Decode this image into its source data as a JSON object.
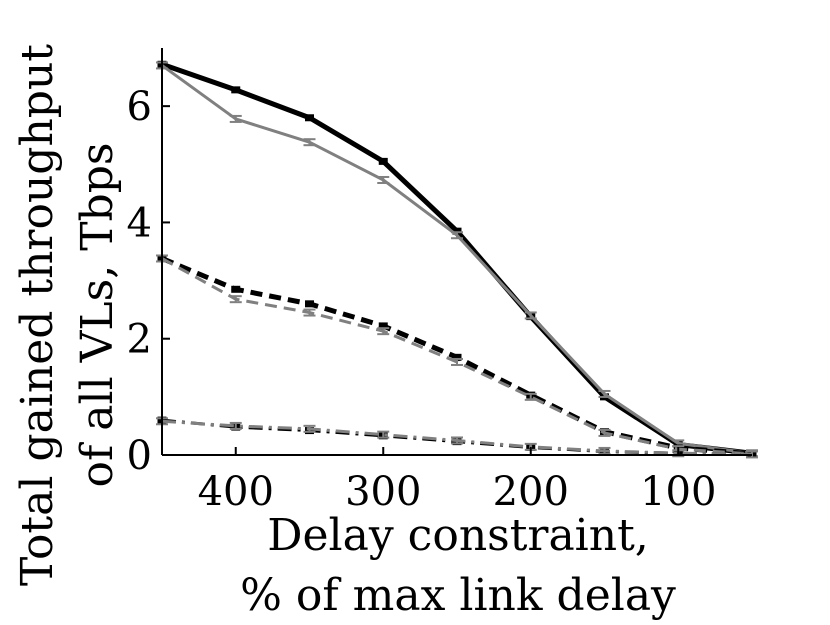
{
  "chart_data": {
    "type": "line",
    "title": "",
    "xlabel": [
      "Delay constraint,",
      "% of max link delay"
    ],
    "ylabel": [
      "Total gained throughput",
      "of all VLs, Tbps"
    ],
    "xlim": [
      450,
      50
    ],
    "ylim": [
      0,
      7
    ],
    "x_reversed": true,
    "grid": false,
    "legend": "none",
    "xticks": [
      400,
      300,
      200,
      100
    ],
    "yticks": [
      0,
      2,
      4,
      6
    ],
    "x": [
      450,
      400,
      350,
      300,
      250,
      200,
      150,
      100,
      50
    ],
    "series": [
      {
        "color": "#000000",
        "dash": "solid",
        "width": 5,
        "marker": "square",
        "values": [
          6.72,
          6.28,
          5.8,
          5.05,
          3.85,
          2.38,
          1.0,
          0.18,
          0.03
        ]
      },
      {
        "color": "#808080",
        "dash": "solid",
        "width": 3,
        "marker": "errorbar",
        "values": [
          6.7,
          5.78,
          5.38,
          4.73,
          3.78,
          2.4,
          1.05,
          0.2,
          0.03
        ]
      },
      {
        "color": "#000000",
        "dash": "dashed",
        "width": 5,
        "marker": "square",
        "values": [
          3.38,
          2.85,
          2.6,
          2.22,
          1.68,
          1.03,
          0.4,
          0.12,
          0.02
        ]
      },
      {
        "color": "#808080",
        "dash": "dashed",
        "width": 3,
        "marker": "errorbar",
        "values": [
          3.38,
          2.68,
          2.45,
          2.13,
          1.6,
          1.0,
          0.38,
          0.1,
          0.02
        ]
      },
      {
        "color": "#000000",
        "dash": "dashdot",
        "width": 3,
        "marker": "square",
        "values": [
          0.6,
          0.48,
          0.42,
          0.33,
          0.23,
          0.13,
          0.06,
          0.03,
          0.01
        ]
      },
      {
        "color": "#808080",
        "dash": "dashdot",
        "width": 3,
        "marker": "errorbar",
        "values": [
          0.58,
          0.5,
          0.45,
          0.35,
          0.25,
          0.14,
          0.07,
          0.03,
          0.01
        ]
      }
    ]
  }
}
